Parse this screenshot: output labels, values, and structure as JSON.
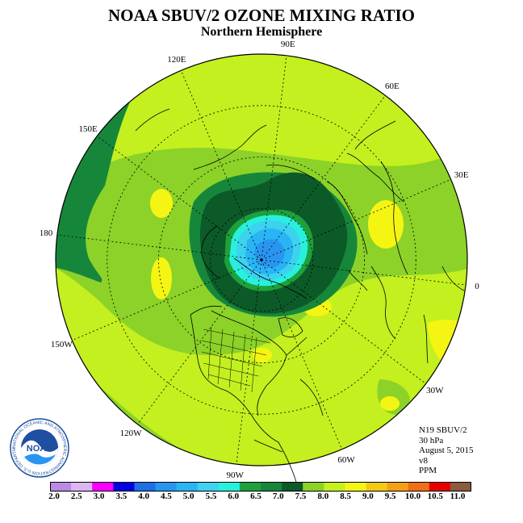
{
  "header": {
    "title": "NOAA SBUV/2 OZONE MIXING RATIO",
    "subtitle": "Northern Hemisphere"
  },
  "map": {
    "projection": "north-polar-stereographic",
    "longitude_labels": [
      {
        "text": "90E",
        "lon": 90
      },
      {
        "text": "60E",
        "lon": 60
      },
      {
        "text": "30E",
        "lon": 30
      },
      {
        "text": "0",
        "lon": 0
      },
      {
        "text": "30W",
        "lon": -30
      },
      {
        "text": "60W",
        "lon": -60
      },
      {
        "text": "90W",
        "lon": -90
      },
      {
        "text": "120W",
        "lon": -120
      },
      {
        "text": "150W",
        "lon": -150
      },
      {
        "text": "180",
        "lon": 180
      },
      {
        "text": "150E",
        "lon": 150
      },
      {
        "text": "120E",
        "lon": 120
      }
    ]
  },
  "info": {
    "satellite": "N19 SBUV/2",
    "level": "30 hPa",
    "date": "August 5, 2015",
    "version": "v8",
    "units": "PPM"
  },
  "colorbar": {
    "ticks": [
      "2.0",
      "2.5",
      "3.0",
      "3.5",
      "4.0",
      "4.5",
      "5.0",
      "5.5",
      "6.0",
      "6.5",
      "7.0",
      "7.5",
      "8.0",
      "8.5",
      "9.0",
      "9.5",
      "10.0",
      "10.5",
      "11.0"
    ],
    "colors": [
      "#b98be6",
      "#dcb4f2",
      "#ff00ff",
      "#0000e0",
      "#1e6ee6",
      "#2896f0",
      "#28b4f5",
      "#3cd2f0",
      "#28f0dc",
      "#1ea03c",
      "#16873a",
      "#0c5a28",
      "#8cd228",
      "#c3f01e",
      "#f5f514",
      "#f5c814",
      "#f5a014",
      "#f06e14",
      "#e60000",
      "#8c5a3c"
    ]
  },
  "logo": {
    "text": "NOAA",
    "ring_text": "NATIONAL OCEANIC AND ATMOSPHERIC ADMINISTRATION U.S. DEPARTMENT OF COMMERCE"
  }
}
